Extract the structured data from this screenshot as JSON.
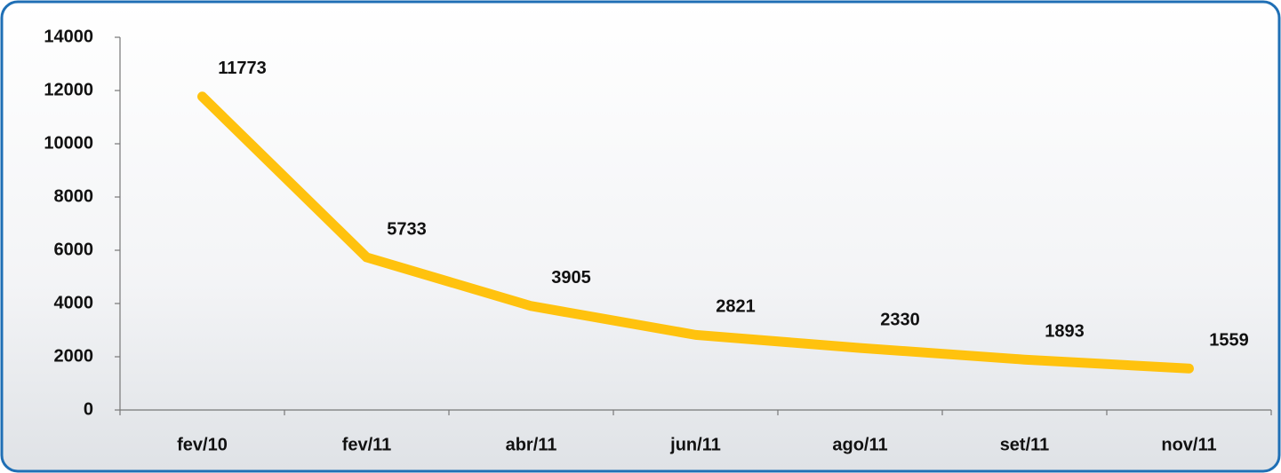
{
  "chart_data": {
    "type": "line",
    "categories": [
      "fev/10",
      "fev/11",
      "abr/11",
      "jun/11",
      "ago/11",
      "set/11",
      "nov/11"
    ],
    "values": [
      11773,
      5733,
      3905,
      2821,
      2330,
      1893,
      1559
    ],
    "color": "#ffc20e",
    "ylim": [
      0,
      14000
    ],
    "yticks": [
      0,
      2000,
      4000,
      6000,
      8000,
      10000,
      12000,
      14000
    ],
    "grid": false
  }
}
